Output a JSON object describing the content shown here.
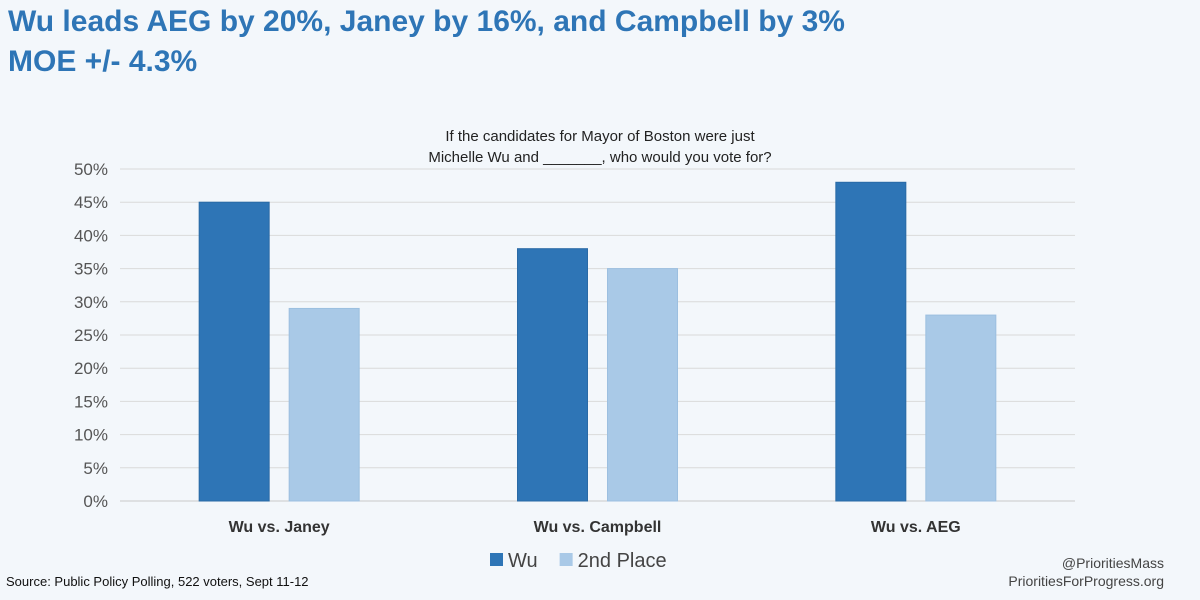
{
  "headline": {
    "line1": "Wu leads AEG by 20%, Janey by 16%, and Campbell by 3%",
    "line2": "MOE +/- 4.3%"
  },
  "chart_data": {
    "type": "bar",
    "title_line1": "If the candidates for Mayor of Boston were just",
    "title_line2": "Michelle Wu and _______, who would you vote for?",
    "categories": [
      "Wu vs. Janey",
      "Wu vs. Campbell",
      "Wu vs. AEG"
    ],
    "series": [
      {
        "name": "Wu",
        "values": [
          45,
          38,
          48
        ],
        "color": "#2e75b6"
      },
      {
        "name": "2nd Place",
        "values": [
          29,
          35,
          28
        ],
        "color": "#a9c9e7"
      }
    ],
    "ylim": [
      0,
      50
    ],
    "yticks": [
      0,
      5,
      10,
      15,
      20,
      25,
      30,
      35,
      40,
      45,
      50
    ],
    "ytick_labels": [
      "0%",
      "5%",
      "10%",
      "15%",
      "20%",
      "25%",
      "30%",
      "35%",
      "40%",
      "45%",
      "50%"
    ],
    "grid": true,
    "legend_position": "bottom-center",
    "xlabel": "",
    "ylabel": ""
  },
  "footer": {
    "source": "Source: Public Policy Polling, 522 voters, Sept 11-12",
    "handle": "@PrioritiesMass",
    "site": "PrioritiesForProgress.org"
  }
}
